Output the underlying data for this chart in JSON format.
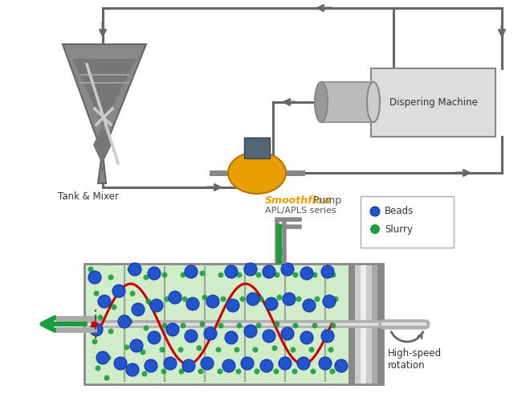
{
  "bg_color": "#ffffff",
  "line_color": "#666666",
  "tank_color": "#888888",
  "tank_liquid": "#777777",
  "box_color": "#dddddd",
  "green_color": "#1a9e3f",
  "red_color": "#cc0000",
  "blue_bead_color": "#2255cc",
  "chamber_fill": "#d0ecc8",
  "smoothflow_color": "#e8a000",
  "rotor_color": "#aaaaaa",
  "label_tank": "Tank & Mixer",
  "label_dispering": "Dispering Machine",
  "label_smoothflow_italic": "Smoothflow",
  "label_pump": " Pump",
  "label_apl": "APL/APLS series",
  "label_beads": "Beads",
  "label_slurry": "Slurry",
  "label_highspeed": "High-speed\nrotation"
}
